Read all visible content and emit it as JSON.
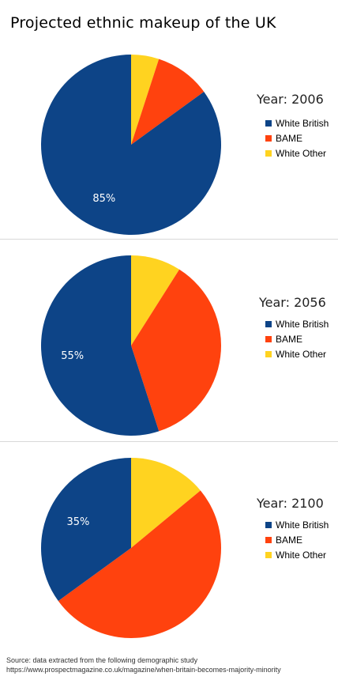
{
  "title": "Projected ethnic makeup of the UK",
  "colors": {
    "white_british": "#0d4487",
    "bame": "#ff420e",
    "white_other": "#ffd320"
  },
  "chart_data": [
    {
      "type": "pie",
      "year_label": "Year: 2006",
      "legend": [
        "White British",
        "BAME",
        "White Other"
      ],
      "slices": [
        {
          "name": "White British",
          "value": 85,
          "label": "85%"
        },
        {
          "name": "BAME",
          "value": 10,
          "label": ""
        },
        {
          "name": "White Other",
          "value": 5,
          "label": ""
        }
      ]
    },
    {
      "type": "pie",
      "year_label": "Year: 2056",
      "legend": [
        "White British",
        "BAME",
        "White Other"
      ],
      "slices": [
        {
          "name": "White British",
          "value": 55,
          "label": "55%"
        },
        {
          "name": "BAME",
          "value": 36,
          "label": ""
        },
        {
          "name": "White Other",
          "value": 9,
          "label": ""
        }
      ]
    },
    {
      "type": "pie",
      "year_label": "Year: 2100",
      "legend": [
        "White British",
        "BAME",
        "White Other"
      ],
      "slices": [
        {
          "name": "White British",
          "value": 35,
          "label": "35%"
        },
        {
          "name": "BAME",
          "value": 51,
          "label": ""
        },
        {
          "name": "White Other",
          "value": 14,
          "label": ""
        }
      ]
    }
  ],
  "footer": {
    "line1": "Source: data extracted from the following demographic study",
    "line2": "https://www.prospectmagazine.co.uk/magazine/when-britain-becomes-majority-minority"
  }
}
